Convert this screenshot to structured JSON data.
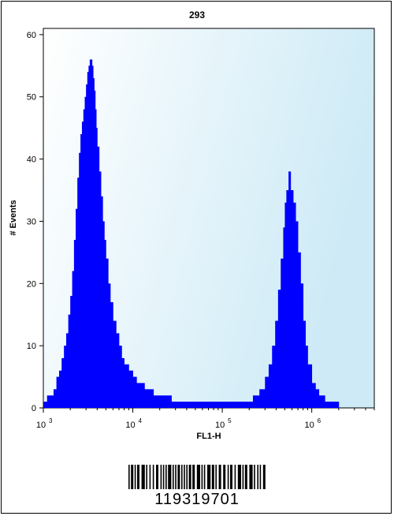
{
  "chart_data": {
    "type": "histogram",
    "title": "293",
    "xlabel": "FL1-H",
    "ylabel": "# Events",
    "x_scale": "log",
    "xlim": [
      1000,
      5000000
    ],
    "ylim": [
      0,
      61
    ],
    "x_ticks": [
      {
        "value": 1000,
        "base": "10",
        "exp": "3"
      },
      {
        "value": 10000,
        "base": "10",
        "exp": "4"
      },
      {
        "value": 100000,
        "base": "10",
        "exp": "5"
      },
      {
        "value": 1000000,
        "base": "10",
        "exp": "6"
      }
    ],
    "y_ticks": [
      0,
      10,
      20,
      30,
      40,
      50,
      60
    ],
    "grid": false,
    "series": [
      {
        "color": "#0000ff",
        "x": [
          1000,
          1100,
          1200,
          1300,
          1400,
          1500,
          1600,
          1700,
          1800,
          1900,
          2000,
          2100,
          2200,
          2300,
          2400,
          2500,
          2600,
          2700,
          2800,
          2900,
          3000,
          3100,
          3200,
          3300,
          3400,
          3500,
          3600,
          3700,
          3800,
          3900,
          4000,
          4200,
          4400,
          4600,
          4800,
          5000,
          5300,
          5600,
          6000,
          6500,
          7000,
          7500,
          8000,
          9000,
          10000,
          11000,
          12000,
          13500,
          15000,
          17000,
          20000,
          23000,
          27000,
          32000,
          40000,
          50000,
          60000,
          75000,
          90000,
          110000,
          140000,
          180000,
          220000,
          260000,
          300000,
          330000,
          360000,
          390000,
          420000,
          450000,
          480000,
          500000,
          520000,
          550000,
          580000,
          620000,
          660000,
          700000,
          750000,
          800000,
          850000,
          900000,
          1000000,
          1100000,
          1200000,
          1400000,
          1600000,
          1800000,
          2000000,
          2500000
        ],
        "y": [
          1,
          2,
          2,
          3,
          5,
          6,
          8,
          10,
          12,
          15,
          18,
          22,
          27,
          32,
          37,
          41,
          44,
          46,
          48,
          50,
          52,
          54,
          55,
          56,
          56,
          55,
          53,
          51,
          48,
          45,
          42,
          38,
          34,
          30,
          27,
          24,
          20,
          17,
          14,
          12,
          10,
          8,
          7,
          6,
          5,
          4,
          4,
          3,
          3,
          2,
          2,
          2,
          1,
          1,
          1,
          1,
          1,
          1,
          1,
          1,
          1,
          1,
          2,
          3,
          5,
          7,
          10,
          14,
          19,
          24,
          29,
          33,
          35,
          38,
          35,
          33,
          30,
          25,
          20,
          14,
          10,
          7,
          4,
          3,
          2,
          1,
          1,
          1,
          0,
          0
        ]
      }
    ]
  },
  "barcode": {
    "number": "119319701"
  }
}
